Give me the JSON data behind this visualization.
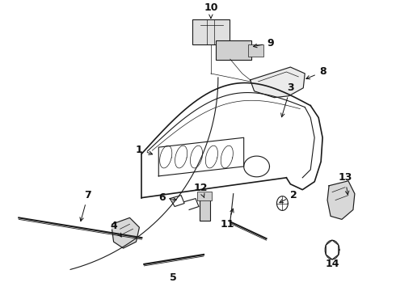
{
  "bg_color": "#ffffff",
  "line_color": "#1a1a1a",
  "text_color": "#111111",
  "label_fontsize": 9,
  "lw_main": 1.2,
  "lw_thin": 0.8,
  "lw_detail": 0.5
}
